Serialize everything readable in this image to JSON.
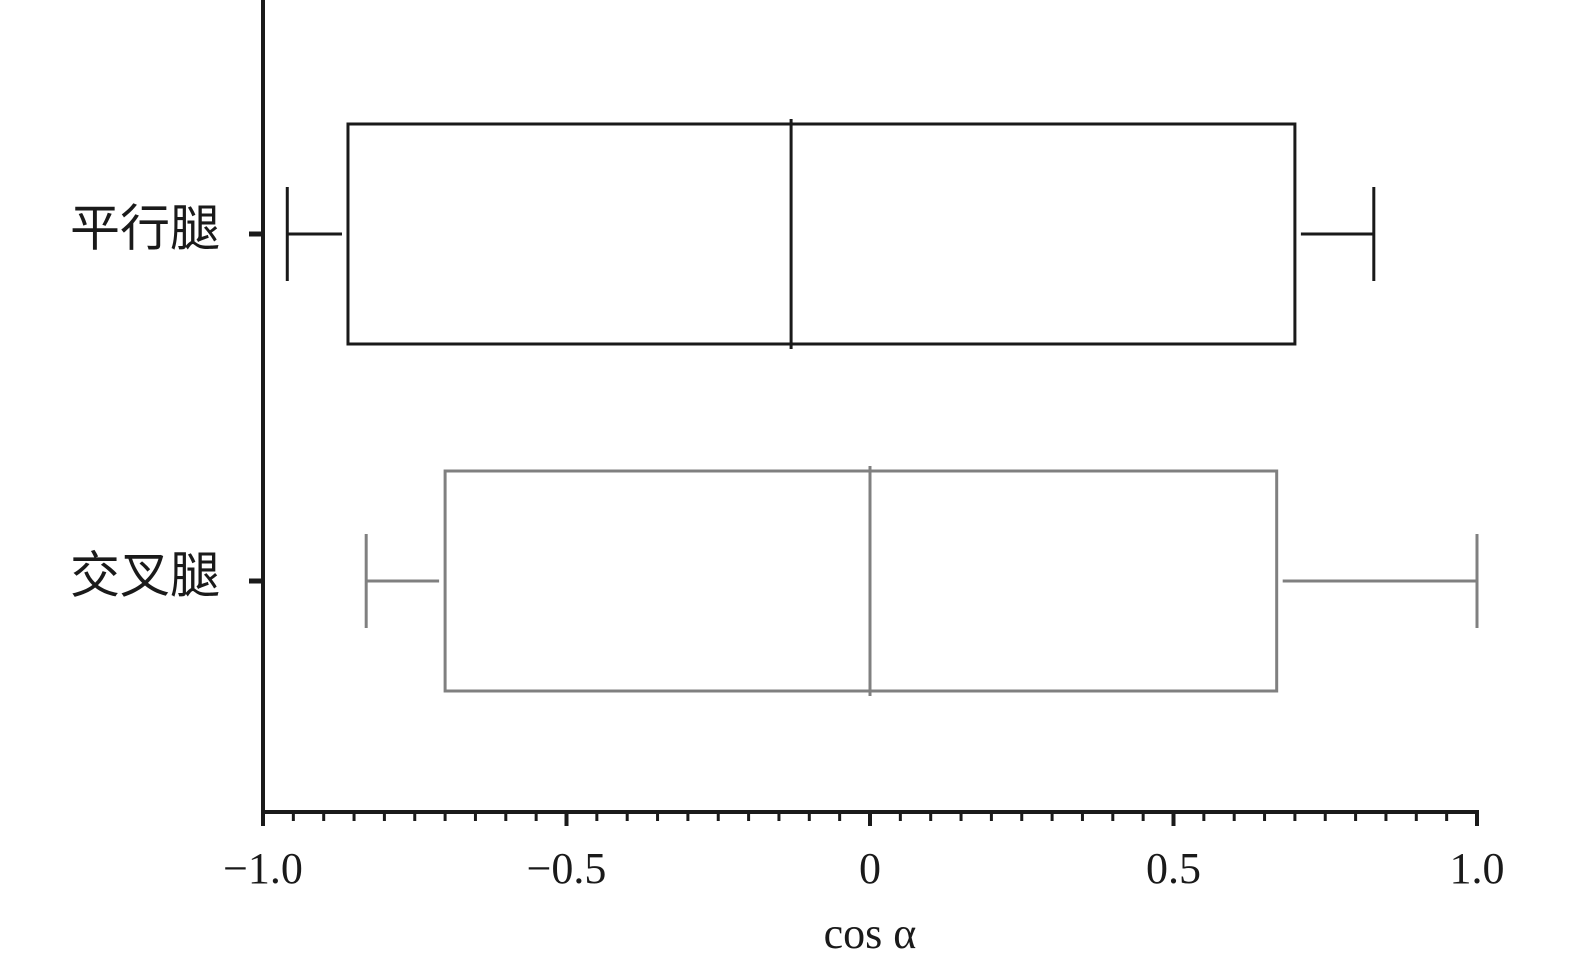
{
  "chart_data": {
    "type": "box",
    "orientation": "horizontal",
    "x_label": "cos α",
    "categories": [
      "平行腿",
      "交叉腿"
    ],
    "boxes": [
      {
        "whislo": -0.96,
        "q1": -0.86,
        "med": -0.13,
        "q3": 0.7,
        "whishi": 0.83,
        "color": "#1a1a1a"
      },
      {
        "whislo": -0.83,
        "q1": -0.7,
        "med": 0.0,
        "q3": 0.67,
        "whishi": 1.0,
        "color": "#808080"
      }
    ],
    "xlim": [
      -1.0,
      1.0
    ],
    "xticks": [
      {
        "value": -1.0,
        "label": "−1.0"
      },
      {
        "value": -0.5,
        "label": "−0.5"
      },
      0,
      0.5,
      {
        "value": 1.0,
        "label": "1.0"
      }
    ],
    "minor_xticks": [
      -0.95,
      -0.9,
      -0.85,
      -0.8,
      -0.75,
      -0.7,
      -0.65,
      -0.6,
      -0.55,
      -0.45,
      -0.4,
      -0.35,
      -0.3,
      -0.25,
      -0.2,
      -0.15,
      -0.1,
      -0.05,
      0.05,
      0.1,
      0.15,
      0.2,
      0.25,
      0.3,
      0.35,
      0.4,
      0.45,
      0.55,
      0.6,
      0.65,
      0.7,
      0.75,
      0.8,
      0.85,
      0.9,
      0.95
    ]
  }
}
